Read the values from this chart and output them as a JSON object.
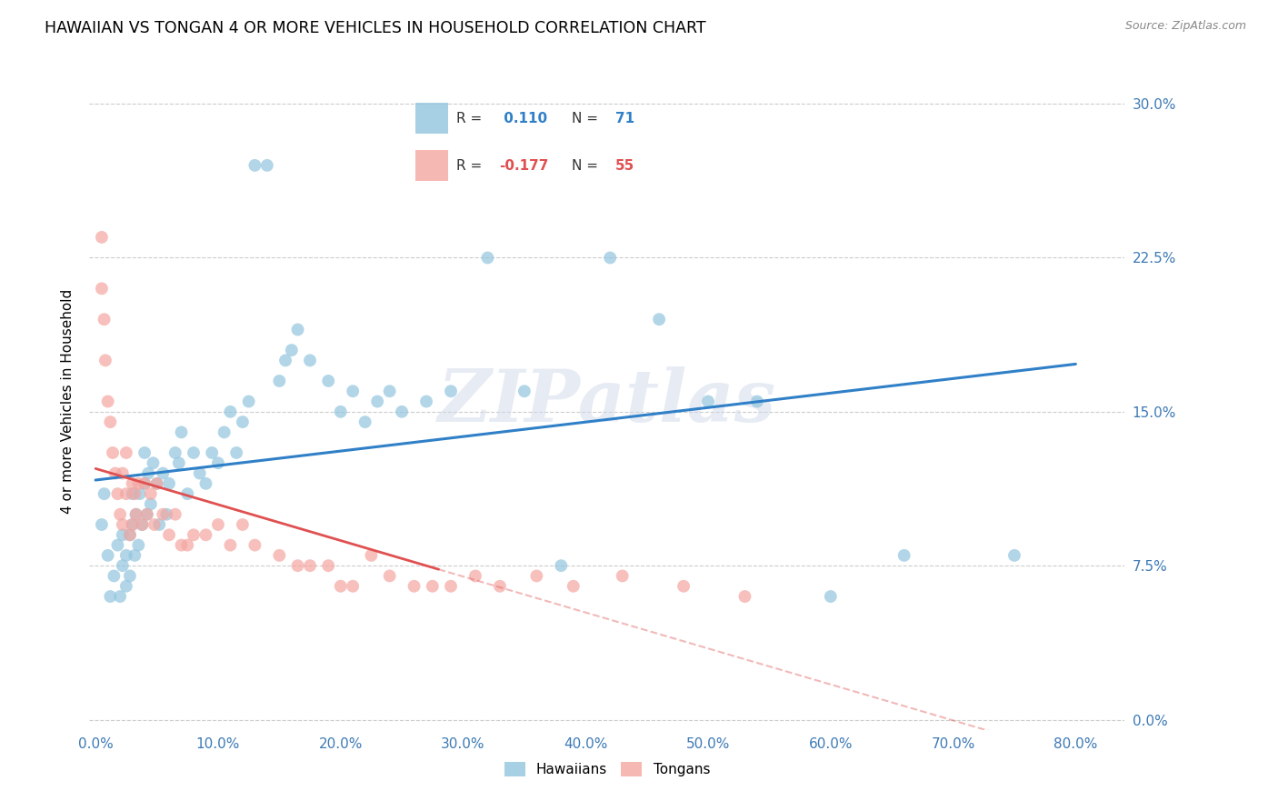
{
  "title": "HAWAIIAN VS TONGAN 4 OR MORE VEHICLES IN HOUSEHOLD CORRELATION CHART",
  "source": "Source: ZipAtlas.com",
  "xlabel_ticks": [
    "0.0%",
    "10.0%",
    "20.0%",
    "30.0%",
    "40.0%",
    "50.0%",
    "60.0%",
    "70.0%",
    "80.0%"
  ],
  "xlabel_vals": [
    0.0,
    0.1,
    0.2,
    0.3,
    0.4,
    0.5,
    0.6,
    0.7,
    0.8
  ],
  "ylabel": "4 or more Vehicles in Household",
  "ylabel_ticks": [
    "0.0%",
    "7.5%",
    "15.0%",
    "22.5%",
    "30.0%"
  ],
  "ylabel_vals": [
    0.0,
    0.075,
    0.15,
    0.225,
    0.3
  ],
  "ylim": [
    -0.005,
    0.315
  ],
  "xlim": [
    -0.005,
    0.84
  ],
  "hawaiian_R": "0.110",
  "hawaiian_N": "71",
  "tongan_R": "-0.177",
  "tongan_N": "55",
  "hawaiian_color": "#92c5de",
  "tongan_color": "#f4a6a0",
  "hawaiian_line_color": "#3080c8",
  "tongan_line_color": "#e05050",
  "watermark": "ZIPatlas",
  "hawaiian_x": [
    0.005,
    0.007,
    0.01,
    0.012,
    0.015,
    0.018,
    0.02,
    0.022,
    0.022,
    0.025,
    0.025,
    0.028,
    0.028,
    0.03,
    0.03,
    0.032,
    0.033,
    0.035,
    0.036,
    0.038,
    0.04,
    0.04,
    0.042,
    0.043,
    0.045,
    0.047,
    0.05,
    0.052,
    0.055,
    0.058,
    0.06,
    0.065,
    0.068,
    0.07,
    0.075,
    0.08,
    0.085,
    0.09,
    0.095,
    0.1,
    0.105,
    0.11,
    0.115,
    0.12,
    0.125,
    0.13,
    0.14,
    0.15,
    0.155,
    0.16,
    0.165,
    0.175,
    0.19,
    0.2,
    0.21,
    0.22,
    0.23,
    0.24,
    0.25,
    0.27,
    0.29,
    0.32,
    0.35,
    0.38,
    0.42,
    0.46,
    0.5,
    0.54,
    0.6,
    0.66,
    0.75
  ],
  "hawaiian_y": [
    0.095,
    0.11,
    0.08,
    0.06,
    0.07,
    0.085,
    0.06,
    0.075,
    0.09,
    0.065,
    0.08,
    0.07,
    0.09,
    0.095,
    0.11,
    0.08,
    0.1,
    0.085,
    0.11,
    0.095,
    0.115,
    0.13,
    0.1,
    0.12,
    0.105,
    0.125,
    0.115,
    0.095,
    0.12,
    0.1,
    0.115,
    0.13,
    0.125,
    0.14,
    0.11,
    0.13,
    0.12,
    0.115,
    0.13,
    0.125,
    0.14,
    0.15,
    0.13,
    0.145,
    0.155,
    0.27,
    0.27,
    0.165,
    0.175,
    0.18,
    0.19,
    0.175,
    0.165,
    0.15,
    0.16,
    0.145,
    0.155,
    0.16,
    0.15,
    0.155,
    0.16,
    0.225,
    0.16,
    0.075,
    0.225,
    0.195,
    0.155,
    0.155,
    0.06,
    0.08,
    0.08
  ],
  "tongan_x": [
    0.005,
    0.005,
    0.007,
    0.008,
    0.01,
    0.012,
    0.014,
    0.016,
    0.018,
    0.02,
    0.022,
    0.022,
    0.025,
    0.025,
    0.028,
    0.03,
    0.03,
    0.032,
    0.033,
    0.035,
    0.038,
    0.04,
    0.042,
    0.045,
    0.048,
    0.05,
    0.055,
    0.06,
    0.065,
    0.07,
    0.075,
    0.08,
    0.09,
    0.1,
    0.11,
    0.12,
    0.13,
    0.15,
    0.165,
    0.175,
    0.19,
    0.2,
    0.21,
    0.225,
    0.24,
    0.26,
    0.275,
    0.29,
    0.31,
    0.33,
    0.36,
    0.39,
    0.43,
    0.48,
    0.53
  ],
  "tongan_y": [
    0.235,
    0.21,
    0.195,
    0.175,
    0.155,
    0.145,
    0.13,
    0.12,
    0.11,
    0.1,
    0.12,
    0.095,
    0.11,
    0.13,
    0.09,
    0.115,
    0.095,
    0.11,
    0.1,
    0.115,
    0.095,
    0.115,
    0.1,
    0.11,
    0.095,
    0.115,
    0.1,
    0.09,
    0.1,
    0.085,
    0.085,
    0.09,
    0.09,
    0.095,
    0.085,
    0.095,
    0.085,
    0.08,
    0.075,
    0.075,
    0.075,
    0.065,
    0.065,
    0.08,
    0.07,
    0.065,
    0.065,
    0.065,
    0.07,
    0.065,
    0.07,
    0.065,
    0.07,
    0.065,
    0.06
  ]
}
